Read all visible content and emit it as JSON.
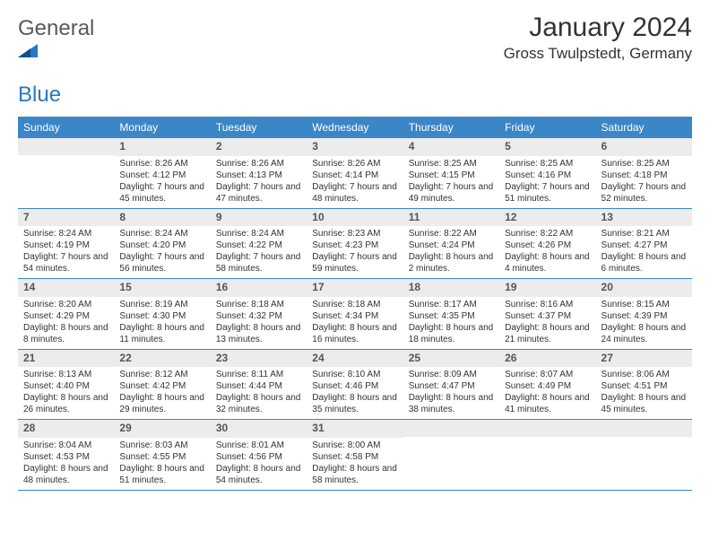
{
  "brand": {
    "text1": "General",
    "text2": "Blue"
  },
  "title": "January 2024",
  "location": "Gross Twulpstedt, Germany",
  "colors": {
    "header_bg": "#3b86c7",
    "header_text": "#ffffff",
    "daynum_bg": "#ececec",
    "daynum_text": "#555555",
    "cell_text": "#333333",
    "row_border": "#3b86c7",
    "brand_gray": "#555a5e",
    "brand_blue": "#2b77c0",
    "page_bg": "#ffffff"
  },
  "typography": {
    "title_fontsize": 30,
    "location_fontsize": 17,
    "logo_fontsize": 24,
    "weekday_fontsize": 12,
    "daynum_fontsize": 12,
    "cell_fontsize": 10
  },
  "weekdays": [
    "Sunday",
    "Monday",
    "Tuesday",
    "Wednesday",
    "Thursday",
    "Friday",
    "Saturday"
  ],
  "weeks": [
    [
      {
        "day": "",
        "sunrise": "",
        "sunset": "",
        "daylight": ""
      },
      {
        "day": "1",
        "sunrise": "Sunrise: 8:26 AM",
        "sunset": "Sunset: 4:12 PM",
        "daylight": "Daylight: 7 hours and 45 minutes."
      },
      {
        "day": "2",
        "sunrise": "Sunrise: 8:26 AM",
        "sunset": "Sunset: 4:13 PM",
        "daylight": "Daylight: 7 hours and 47 minutes."
      },
      {
        "day": "3",
        "sunrise": "Sunrise: 8:26 AM",
        "sunset": "Sunset: 4:14 PM",
        "daylight": "Daylight: 7 hours and 48 minutes."
      },
      {
        "day": "4",
        "sunrise": "Sunrise: 8:25 AM",
        "sunset": "Sunset: 4:15 PM",
        "daylight": "Daylight: 7 hours and 49 minutes."
      },
      {
        "day": "5",
        "sunrise": "Sunrise: 8:25 AM",
        "sunset": "Sunset: 4:16 PM",
        "daylight": "Daylight: 7 hours and 51 minutes."
      },
      {
        "day": "6",
        "sunrise": "Sunrise: 8:25 AM",
        "sunset": "Sunset: 4:18 PM",
        "daylight": "Daylight: 7 hours and 52 minutes."
      }
    ],
    [
      {
        "day": "7",
        "sunrise": "Sunrise: 8:24 AM",
        "sunset": "Sunset: 4:19 PM",
        "daylight": "Daylight: 7 hours and 54 minutes."
      },
      {
        "day": "8",
        "sunrise": "Sunrise: 8:24 AM",
        "sunset": "Sunset: 4:20 PM",
        "daylight": "Daylight: 7 hours and 56 minutes."
      },
      {
        "day": "9",
        "sunrise": "Sunrise: 8:24 AM",
        "sunset": "Sunset: 4:22 PM",
        "daylight": "Daylight: 7 hours and 58 minutes."
      },
      {
        "day": "10",
        "sunrise": "Sunrise: 8:23 AM",
        "sunset": "Sunset: 4:23 PM",
        "daylight": "Daylight: 7 hours and 59 minutes."
      },
      {
        "day": "11",
        "sunrise": "Sunrise: 8:22 AM",
        "sunset": "Sunset: 4:24 PM",
        "daylight": "Daylight: 8 hours and 2 minutes."
      },
      {
        "day": "12",
        "sunrise": "Sunrise: 8:22 AM",
        "sunset": "Sunset: 4:26 PM",
        "daylight": "Daylight: 8 hours and 4 minutes."
      },
      {
        "day": "13",
        "sunrise": "Sunrise: 8:21 AM",
        "sunset": "Sunset: 4:27 PM",
        "daylight": "Daylight: 8 hours and 6 minutes."
      }
    ],
    [
      {
        "day": "14",
        "sunrise": "Sunrise: 8:20 AM",
        "sunset": "Sunset: 4:29 PM",
        "daylight": "Daylight: 8 hours and 8 minutes."
      },
      {
        "day": "15",
        "sunrise": "Sunrise: 8:19 AM",
        "sunset": "Sunset: 4:30 PM",
        "daylight": "Daylight: 8 hours and 11 minutes."
      },
      {
        "day": "16",
        "sunrise": "Sunrise: 8:18 AM",
        "sunset": "Sunset: 4:32 PM",
        "daylight": "Daylight: 8 hours and 13 minutes."
      },
      {
        "day": "17",
        "sunrise": "Sunrise: 8:18 AM",
        "sunset": "Sunset: 4:34 PM",
        "daylight": "Daylight: 8 hours and 16 minutes."
      },
      {
        "day": "18",
        "sunrise": "Sunrise: 8:17 AM",
        "sunset": "Sunset: 4:35 PM",
        "daylight": "Daylight: 8 hours and 18 minutes."
      },
      {
        "day": "19",
        "sunrise": "Sunrise: 8:16 AM",
        "sunset": "Sunset: 4:37 PM",
        "daylight": "Daylight: 8 hours and 21 minutes."
      },
      {
        "day": "20",
        "sunrise": "Sunrise: 8:15 AM",
        "sunset": "Sunset: 4:39 PM",
        "daylight": "Daylight: 8 hours and 24 minutes."
      }
    ],
    [
      {
        "day": "21",
        "sunrise": "Sunrise: 8:13 AM",
        "sunset": "Sunset: 4:40 PM",
        "daylight": "Daylight: 8 hours and 26 minutes."
      },
      {
        "day": "22",
        "sunrise": "Sunrise: 8:12 AM",
        "sunset": "Sunset: 4:42 PM",
        "daylight": "Daylight: 8 hours and 29 minutes."
      },
      {
        "day": "23",
        "sunrise": "Sunrise: 8:11 AM",
        "sunset": "Sunset: 4:44 PM",
        "daylight": "Daylight: 8 hours and 32 minutes."
      },
      {
        "day": "24",
        "sunrise": "Sunrise: 8:10 AM",
        "sunset": "Sunset: 4:46 PM",
        "daylight": "Daylight: 8 hours and 35 minutes."
      },
      {
        "day": "25",
        "sunrise": "Sunrise: 8:09 AM",
        "sunset": "Sunset: 4:47 PM",
        "daylight": "Daylight: 8 hours and 38 minutes."
      },
      {
        "day": "26",
        "sunrise": "Sunrise: 8:07 AM",
        "sunset": "Sunset: 4:49 PM",
        "daylight": "Daylight: 8 hours and 41 minutes."
      },
      {
        "day": "27",
        "sunrise": "Sunrise: 8:06 AM",
        "sunset": "Sunset: 4:51 PM",
        "daylight": "Daylight: 8 hours and 45 minutes."
      }
    ],
    [
      {
        "day": "28",
        "sunrise": "Sunrise: 8:04 AM",
        "sunset": "Sunset: 4:53 PM",
        "daylight": "Daylight: 8 hours and 48 minutes."
      },
      {
        "day": "29",
        "sunrise": "Sunrise: 8:03 AM",
        "sunset": "Sunset: 4:55 PM",
        "daylight": "Daylight: 8 hours and 51 minutes."
      },
      {
        "day": "30",
        "sunrise": "Sunrise: 8:01 AM",
        "sunset": "Sunset: 4:56 PM",
        "daylight": "Daylight: 8 hours and 54 minutes."
      },
      {
        "day": "31",
        "sunrise": "Sunrise: 8:00 AM",
        "sunset": "Sunset: 4:58 PM",
        "daylight": "Daylight: 8 hours and 58 minutes."
      },
      {
        "day": "",
        "sunrise": "",
        "sunset": "",
        "daylight": ""
      },
      {
        "day": "",
        "sunrise": "",
        "sunset": "",
        "daylight": ""
      },
      {
        "day": "",
        "sunrise": "",
        "sunset": "",
        "daylight": ""
      }
    ]
  ]
}
